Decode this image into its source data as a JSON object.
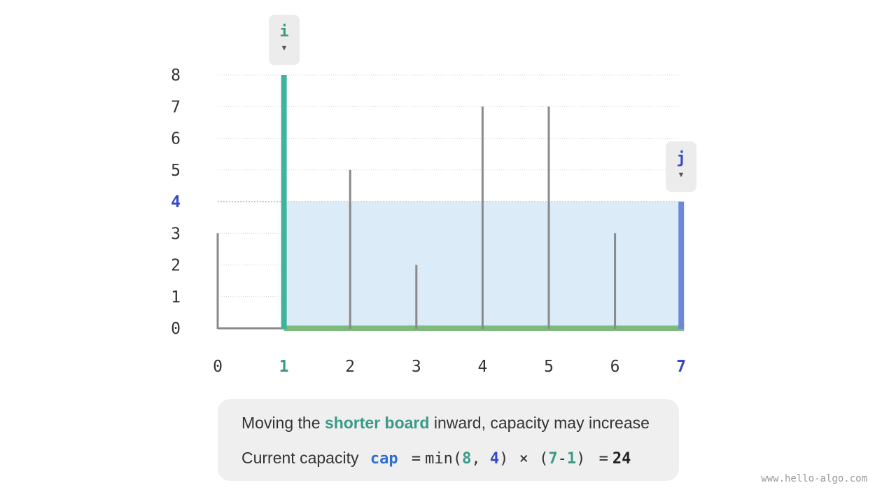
{
  "chart_data": {
    "type": "bar",
    "categories": [
      "0",
      "1",
      "2",
      "3",
      "4",
      "5",
      "6",
      "7"
    ],
    "values": [
      3,
      8,
      5,
      2,
      7,
      7,
      3,
      4
    ],
    "y_ticks": [
      "0",
      "1",
      "2",
      "3",
      "4",
      "5",
      "6",
      "7",
      "8"
    ],
    "ylim": [
      0,
      8
    ],
    "grid": true,
    "highlight": {
      "i": 1,
      "j": 7,
      "water_level": 4
    },
    "colors": {
      "bar": "#8a8a8a",
      "board_i": "#3fb49c",
      "board_j": "#6d88d8",
      "water": "#dbebf8",
      "base": "#7dbb7d",
      "grid": "#d0d0d0",
      "label": "#333333",
      "label_i": "#3a9a86",
      "label_j": "#3748c7"
    }
  },
  "pointers": {
    "i": "i",
    "j": "j",
    "arrow": "▼"
  },
  "info": {
    "line1_a": "Moving the ",
    "line1_b": "shorter board",
    "line1_c": " inward, capacity may increase",
    "line2_label": "Current capacity",
    "cap": "cap",
    "eq": "=",
    "fn": "min(",
    "v8": "8",
    "comma": ", ",
    "v4": "4",
    "close": ")",
    "times": "×",
    "open": "(",
    "v7": "7",
    "minus": "-",
    "v1": "1",
    "close2": ")",
    "eq2": "=",
    "result": "24"
  },
  "watermark": "www.hello-algo.com"
}
